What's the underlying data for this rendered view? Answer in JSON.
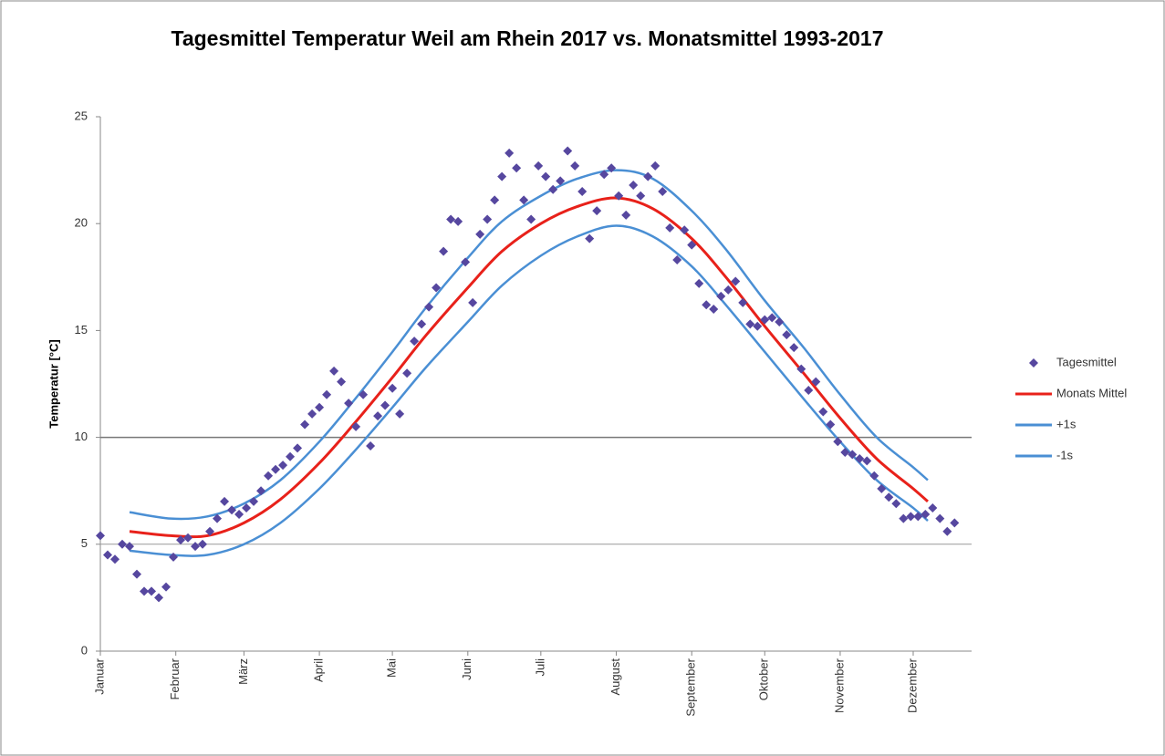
{
  "chart_data": {
    "type": "scatter",
    "title": "Tagesmittel Temperatur Weil am Rhein 2017 vs. Monatsmittel 1993-2017",
    "y_label": "Temperatur [°C]",
    "xlim": [
      1,
      359
    ],
    "xticks": [
      {
        "value": 1,
        "label": "Januar"
      },
      {
        "value": 32,
        "label": "Februar"
      },
      {
        "value": 60,
        "label": "März"
      },
      {
        "value": 91,
        "label": "April"
      },
      {
        "value": 121,
        "label": "Mai"
      },
      {
        "value": 152,
        "label": "Juni"
      },
      {
        "value": 182,
        "label": "Juli"
      },
      {
        "value": 213,
        "label": "August"
      },
      {
        "value": 244,
        "label": "September"
      },
      {
        "value": 274,
        "label": "Oktober"
      },
      {
        "value": 305,
        "label": "November"
      },
      {
        "value": 335,
        "label": "Dezember"
      }
    ],
    "ylim": [
      0,
      25
    ],
    "yticks": [
      0,
      5,
      10,
      15,
      20,
      25
    ],
    "hlines": [
      5,
      10
    ],
    "legend": "right",
    "series": [
      {
        "name": "Tagesmittel",
        "type": "scatter",
        "color": "#56479f",
        "x": [
          1,
          4,
          7,
          10,
          13,
          16,
          19,
          22,
          25,
          28,
          31,
          34,
          37,
          40,
          43,
          46,
          49,
          52,
          55,
          58,
          61,
          64,
          67,
          70,
          73,
          76,
          79,
          82,
          85,
          88,
          91,
          94,
          97,
          100,
          103,
          106,
          109,
          112,
          115,
          118,
          121,
          124,
          127,
          130,
          133,
          136,
          139,
          142,
          145,
          148,
          151,
          154,
          157,
          160,
          163,
          166,
          169,
          172,
          175,
          178,
          181,
          184,
          187,
          190,
          193,
          196,
          199,
          202,
          205,
          208,
          211,
          214,
          217,
          220,
          223,
          226,
          229,
          232,
          235,
          238,
          241,
          244,
          247,
          250,
          253,
          256,
          259,
          262,
          265,
          268,
          271,
          274,
          277,
          280,
          283,
          286,
          289,
          292,
          295,
          298,
          301,
          304,
          307,
          310,
          313,
          316,
          319,
          322,
          325,
          328,
          331,
          334,
          337,
          340,
          343,
          346,
          349,
          352
        ],
        "values": [
          5.4,
          4.5,
          4.3,
          5.0,
          4.9,
          3.6,
          2.8,
          2.8,
          2.5,
          3.0,
          4.4,
          5.2,
          5.3,
          4.9,
          5.0,
          5.6,
          6.2,
          7.0,
          6.6,
          6.4,
          6.7,
          7.0,
          7.5,
          8.2,
          8.5,
          8.7,
          9.1,
          9.5,
          10.6,
          11.1,
          11.4,
          12.0,
          13.1,
          12.6,
          11.6,
          10.5,
          12.0,
          9.6,
          11.0,
          11.5,
          12.3,
          11.1,
          13.0,
          14.5,
          15.3,
          16.1,
          17.0,
          18.7,
          20.2,
          20.1,
          18.2,
          16.3,
          19.5,
          20.2,
          21.1,
          22.2,
          23.3,
          22.6,
          21.1,
          20.2,
          22.7,
          22.2,
          21.6,
          22.0,
          23.4,
          22.7,
          21.5,
          19.3,
          20.6,
          22.3,
          22.6,
          21.3,
          20.4,
          21.8,
          21.3,
          22.2,
          22.7,
          21.5,
          19.8,
          18.3,
          19.7,
          19.0,
          17.2,
          16.2,
          16.0,
          16.6,
          16.9,
          17.3,
          16.3,
          15.3,
          15.2,
          15.5,
          15.6,
          15.4,
          14.8,
          14.2,
          13.2,
          12.2,
          12.6,
          11.2,
          10.6,
          9.8,
          9.3,
          9.2,
          9.0,
          8.9,
          8.2,
          7.6,
          7.2,
          6.9,
          6.2,
          6.3,
          6.3,
          6.4,
          6.7,
          6.2,
          5.6,
          6.0
        ]
      },
      {
        "name": "Monats Mittel",
        "type": "line",
        "color": "#e8211a",
        "x": [
          13,
          30,
          45,
          60,
          75,
          91,
          105,
          121,
          135,
          152,
          166,
          182,
          197,
          213,
          228,
          244,
          258,
          274,
          290,
          305,
          320,
          335,
          341
        ],
        "values": [
          5.6,
          5.4,
          5.4,
          6.0,
          7.1,
          8.8,
          10.6,
          12.8,
          14.8,
          17.0,
          18.7,
          20.0,
          20.8,
          21.2,
          20.7,
          19.3,
          17.5,
          15.2,
          13.0,
          10.9,
          9.0,
          7.6,
          7.0
        ]
      },
      {
        "name": "+1s",
        "type": "line",
        "color": "#4a8fd4",
        "x": [
          13,
          30,
          45,
          60,
          75,
          91,
          105,
          121,
          135,
          152,
          166,
          182,
          197,
          213,
          228,
          244,
          258,
          274,
          290,
          305,
          320,
          335,
          341
        ],
        "values": [
          6.5,
          6.2,
          6.3,
          6.9,
          8.0,
          9.8,
          11.7,
          14.0,
          16.1,
          18.4,
          20.1,
          21.3,
          22.1,
          22.5,
          22.1,
          20.6,
          18.8,
          16.4,
          14.2,
          12.0,
          10.0,
          8.6,
          8.0
        ]
      },
      {
        "name": "-1s",
        "type": "line",
        "color": "#4a8fd4",
        "x": [
          13,
          30,
          45,
          60,
          75,
          91,
          105,
          121,
          135,
          152,
          166,
          182,
          197,
          213,
          228,
          244,
          258,
          274,
          290,
          305,
          320,
          335,
          341
        ],
        "values": [
          4.7,
          4.5,
          4.5,
          5.0,
          6.0,
          7.6,
          9.3,
          11.4,
          13.3,
          15.4,
          17.1,
          18.5,
          19.4,
          19.9,
          19.4,
          18.0,
          16.2,
          14.0,
          11.8,
          9.8,
          8.0,
          6.7,
          6.1
        ]
      }
    ]
  }
}
